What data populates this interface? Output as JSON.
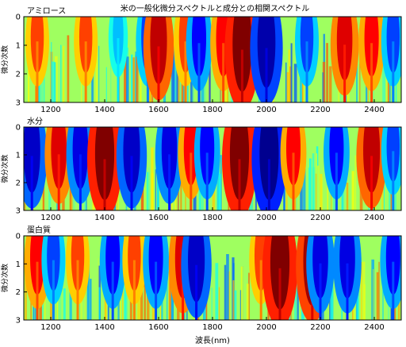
{
  "title": "米の一般化微分スペクトルと成分との相関スペクトル",
  "xlabel": "波長(nm)",
  "colors": {
    "background": "#ffffff",
    "frame": "#000000",
    "colormap": [
      "#00008f",
      "#0000ff",
      "#00ffff",
      "#ffff00",
      "#ff0000",
      "#800000"
    ]
  },
  "chart_data": [
    {
      "type": "heatmap",
      "title": "アミロース",
      "ylabel": "微分次数",
      "xlim": [
        1100,
        2500
      ],
      "ylim": [
        0,
        3
      ],
      "y_inverted": true,
      "xticks": [
        1200,
        1400,
        1600,
        1800,
        2000,
        2200,
        2400
      ],
      "yticks": [
        0,
        1,
        2,
        3
      ],
      "color_scale": "jet",
      "features": [
        {
          "wavelength": 1150,
          "correlation": 0.5
        },
        {
          "wavelength": 1330,
          "correlation": 0.5
        },
        {
          "wavelength": 1450,
          "correlation": -0.3
        },
        {
          "wavelength": 1560,
          "correlation": -0.5
        },
        {
          "wavelength": 1600,
          "correlation": 0.8
        },
        {
          "wavelength": 1700,
          "correlation": 0.5
        },
        {
          "wavelength": 1750,
          "correlation": -0.6
        },
        {
          "wavelength": 1840,
          "correlation": 0.6
        },
        {
          "wavelength": 1910,
          "correlation": 1.0
        },
        {
          "wavelength": 2000,
          "correlation": -0.9
        },
        {
          "wavelength": 2150,
          "correlation": -0.5
        },
        {
          "wavelength": 2290,
          "correlation": 0.7
        },
        {
          "wavelength": 2390,
          "correlation": 0.6
        },
        {
          "wavelength": 2470,
          "correlation": -0.5
        }
      ]
    },
    {
      "type": "heatmap",
      "title": "水分",
      "ylabel": "微分次数",
      "xlim": [
        1100,
        2500
      ],
      "ylim": [
        0,
        3
      ],
      "y_inverted": true,
      "xticks": [
        1200,
        1400,
        1600,
        1800,
        2000,
        2200,
        2400
      ],
      "yticks": [
        0,
        1,
        2,
        3
      ],
      "color_scale": "jet",
      "features": [
        {
          "wavelength": 1130,
          "correlation": -0.8
        },
        {
          "wavelength": 1230,
          "correlation": 0.7
        },
        {
          "wavelength": 1310,
          "correlation": -0.7
        },
        {
          "wavelength": 1400,
          "correlation": 1.0
        },
        {
          "wavelength": 1500,
          "correlation": -0.8
        },
        {
          "wavelength": 1640,
          "correlation": -0.7
        },
        {
          "wavelength": 1720,
          "correlation": 0.6
        },
        {
          "wavelength": 1780,
          "correlation": -0.6
        },
        {
          "wavelength": 1900,
          "correlation": 1.0
        },
        {
          "wavelength": 2010,
          "correlation": -1.0
        },
        {
          "wavelength": 2100,
          "correlation": 0.6
        },
        {
          "wavelength": 2260,
          "correlation": -0.6
        },
        {
          "wavelength": 2390,
          "correlation": 0.8
        },
        {
          "wavelength": 2470,
          "correlation": -0.5
        }
      ]
    },
    {
      "type": "heatmap",
      "title": "蛋白質",
      "ylabel": "微分次数",
      "xlim": [
        1100,
        2500
      ],
      "ylim": [
        0,
        3
      ],
      "y_inverted": true,
      "xticks": [
        1200,
        1400,
        1600,
        1800,
        2000,
        2200,
        2400
      ],
      "yticks": [
        0,
        1,
        2,
        3
      ],
      "color_scale": "jet",
      "features": [
        {
          "wavelength": 1150,
          "correlation": 0.6
        },
        {
          "wavelength": 1210,
          "correlation": -0.5
        },
        {
          "wavelength": 1300,
          "correlation": 0.5
        },
        {
          "wavelength": 1430,
          "correlation": -0.6
        },
        {
          "wavelength": 1510,
          "correlation": 0.5
        },
        {
          "wavelength": 1590,
          "correlation": -0.6
        },
        {
          "wavelength": 1690,
          "correlation": 0.7
        },
        {
          "wavelength": 1740,
          "correlation": -0.8
        },
        {
          "wavelength": 1980,
          "correlation": 0.5
        },
        {
          "wavelength": 2050,
          "correlation": 1.0
        },
        {
          "wavelength": 2170,
          "correlation": 0.9
        },
        {
          "wavelength": 2200,
          "correlation": -0.7
        },
        {
          "wavelength": 2300,
          "correlation": -0.7
        },
        {
          "wavelength": 2470,
          "correlation": -0.6
        }
      ]
    }
  ]
}
